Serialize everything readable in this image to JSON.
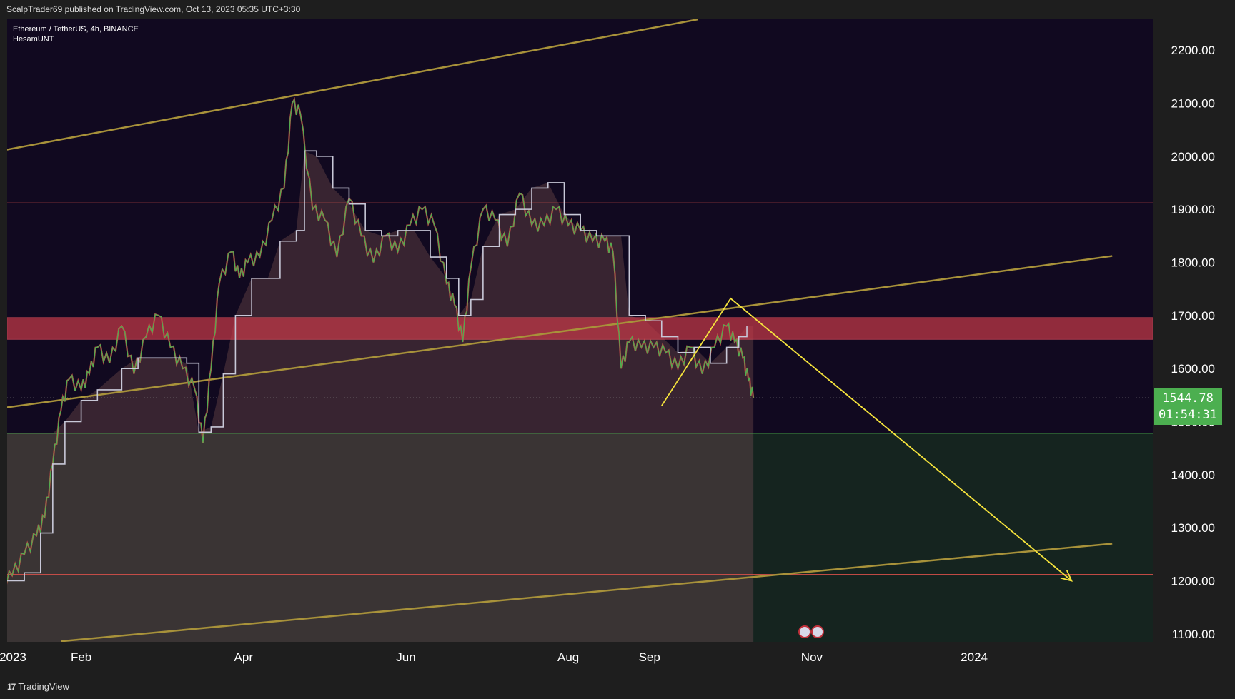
{
  "header": {
    "published_text": "ScalpTrader69 published on TradingView.com, Oct 13, 2023 05:35 UTC+3:30"
  },
  "symbol": {
    "line1": "Ethereum / TetherUS, 4h, BINANCE",
    "line2": "HesamUNT"
  },
  "price_tag": {
    "price": "1544.78",
    "countdown": "01:54:31",
    "color": "#4caf50"
  },
  "footer": {
    "logo_mark": "17",
    "logo_text": "TradingView"
  },
  "chart_data": {
    "type": "line",
    "y_axis": {
      "ticks": [
        "2200.00",
        "2100.00",
        "2000.00",
        "1900.00",
        "1800.00",
        "1700.00",
        "1600.00",
        "1500.00",
        "1400.00",
        "1300.00",
        "1200.00",
        "1100.00"
      ],
      "range": [
        1085,
        2258
      ]
    },
    "x_axis": {
      "ticks": [
        {
          "label": "2023",
          "month": 0
        },
        {
          "label": "Feb",
          "month": 1
        },
        {
          "label": "Apr",
          "month": 3
        },
        {
          "label": "Jun",
          "month": 5
        },
        {
          "label": "Aug",
          "month": 7
        },
        {
          "label": "Sep",
          "month": 8
        },
        {
          "label": "Nov",
          "month": 10
        },
        {
          "label": "2024",
          "month": 12
        }
      ],
      "range_months": [
        0,
        14.2
      ]
    },
    "price_series": {
      "name": "ETHUSDT 4h",
      "points": [
        [
          0.0,
          1195
        ],
        [
          0.15,
          1210
        ],
        [
          0.3,
          1250
        ],
        [
          0.45,
          1285
        ],
        [
          0.55,
          1320
        ],
        [
          0.65,
          1420
        ],
        [
          0.75,
          1520
        ],
        [
          0.85,
          1580
        ],
        [
          1.0,
          1560
        ],
        [
          1.1,
          1590
        ],
        [
          1.2,
          1640
        ],
        [
          1.35,
          1610
        ],
        [
          1.5,
          1680
        ],
        [
          1.65,
          1590
        ],
        [
          1.8,
          1660
        ],
        [
          1.95,
          1700
        ],
        [
          2.1,
          1640
        ],
        [
          2.25,
          1600
        ],
        [
          2.4,
          1560
        ],
        [
          2.5,
          1460
        ],
        [
          2.6,
          1600
        ],
        [
          2.7,
          1760
        ],
        [
          2.85,
          1820
        ],
        [
          2.95,
          1770
        ],
        [
          3.05,
          1800
        ],
        [
          3.2,
          1810
        ],
        [
          3.35,
          1880
        ],
        [
          3.5,
          1940
        ],
        [
          3.6,
          2100
        ],
        [
          3.7,
          2080
        ],
        [
          3.85,
          1900
        ],
        [
          4.0,
          1880
        ],
        [
          4.15,
          1810
        ],
        [
          4.3,
          1920
        ],
        [
          4.45,
          1850
        ],
        [
          4.6,
          1800
        ],
        [
          4.75,
          1850
        ],
        [
          4.9,
          1820
        ],
        [
          5.05,
          1870
        ],
        [
          5.2,
          1900
        ],
        [
          5.35,
          1870
        ],
        [
          5.5,
          1760
        ],
        [
          5.6,
          1720
        ],
        [
          5.7,
          1650
        ],
        [
          5.8,
          1790
        ],
        [
          5.95,
          1900
        ],
        [
          6.1,
          1880
        ],
        [
          6.25,
          1830
        ],
        [
          6.4,
          1930
        ],
        [
          6.55,
          1870
        ],
        [
          6.7,
          1870
        ],
        [
          6.85,
          1900
        ],
        [
          7.0,
          1870
        ],
        [
          7.15,
          1860
        ],
        [
          7.3,
          1840
        ],
        [
          7.45,
          1840
        ],
        [
          7.55,
          1820
        ],
        [
          7.65,
          1600
        ],
        [
          7.75,
          1650
        ],
        [
          7.9,
          1640
        ],
        [
          8.05,
          1640
        ],
        [
          8.2,
          1630
        ],
        [
          8.35,
          1600
        ],
        [
          8.5,
          1640
        ],
        [
          8.65,
          1590
        ],
        [
          8.8,
          1640
        ],
        [
          8.95,
          1680
        ],
        [
          9.05,
          1650
        ],
        [
          9.15,
          1620
        ],
        [
          9.22,
          1578
        ],
        [
          9.28,
          1545
        ]
      ],
      "color": "#4caf50"
    },
    "overlay_series": {
      "name": "HesamUNT",
      "points": [
        [
          0.0,
          1200
        ],
        [
          0.3,
          1215
        ],
        [
          0.5,
          1290
        ],
        [
          0.65,
          1420
        ],
        [
          0.8,
          1500
        ],
        [
          1.0,
          1540
        ],
        [
          1.2,
          1560
        ],
        [
          1.5,
          1600
        ],
        [
          1.7,
          1620
        ],
        [
          1.9,
          1620
        ],
        [
          2.1,
          1620
        ],
        [
          2.3,
          1610
        ],
        [
          2.45,
          1480
        ],
        [
          2.6,
          1490
        ],
        [
          2.75,
          1590
        ],
        [
          2.9,
          1700
        ],
        [
          3.1,
          1770
        ],
        [
          3.3,
          1770
        ],
        [
          3.45,
          1840
        ],
        [
          3.65,
          1860
        ],
        [
          3.75,
          2010
        ],
        [
          3.9,
          2000
        ],
        [
          4.1,
          1940
        ],
        [
          4.3,
          1910
        ],
        [
          4.5,
          1860
        ],
        [
          4.7,
          1850
        ],
        [
          4.9,
          1860
        ],
        [
          5.1,
          1860
        ],
        [
          5.3,
          1810
        ],
        [
          5.5,
          1770
        ],
        [
          5.65,
          1700
        ],
        [
          5.8,
          1730
        ],
        [
          5.95,
          1830
        ],
        [
          6.15,
          1890
        ],
        [
          6.35,
          1900
        ],
        [
          6.55,
          1940
        ],
        [
          6.75,
          1950
        ],
        [
          6.95,
          1890
        ],
        [
          7.15,
          1860
        ],
        [
          7.35,
          1850
        ],
        [
          7.55,
          1850
        ],
        [
          7.65,
          1850
        ],
        [
          7.75,
          1700
        ],
        [
          7.95,
          1690
        ],
        [
          8.15,
          1660
        ],
        [
          8.35,
          1630
        ],
        [
          8.55,
          1640
        ],
        [
          8.75,
          1610
        ],
        [
          8.95,
          1640
        ],
        [
          9.1,
          1660
        ],
        [
          9.2,
          1680
        ]
      ],
      "color": "#c8c8d8"
    },
    "horizontal_levels": [
      {
        "price": 1912,
        "color": "#d9504a"
      },
      {
        "price": 1212,
        "color": "#d9504a"
      },
      {
        "price": 1478,
        "color": "#4caf50"
      }
    ],
    "zone": {
      "top": 1696,
      "bottom": 1655,
      "color": "#c83a48"
    },
    "trendlines": [
      {
        "from": [
          0.0,
          2010
        ],
        "to": [
          8.6,
          2258
        ],
        "color": "#a8923a"
      },
      {
        "from": [
          0.0,
          1525
        ],
        "to": [
          13.7,
          1812
        ],
        "color": "#a8923a"
      },
      {
        "from": [
          0.75,
          1086
        ],
        "to": [
          13.7,
          1270
        ],
        "color": "#a8923a"
      }
    ],
    "projection": {
      "points": [
        [
          8.15,
          1530
        ],
        [
          9.0,
          1732
        ],
        [
          13.2,
          1200
        ]
      ],
      "color": "#f5e33c"
    },
    "last_price": 1544.78
  }
}
